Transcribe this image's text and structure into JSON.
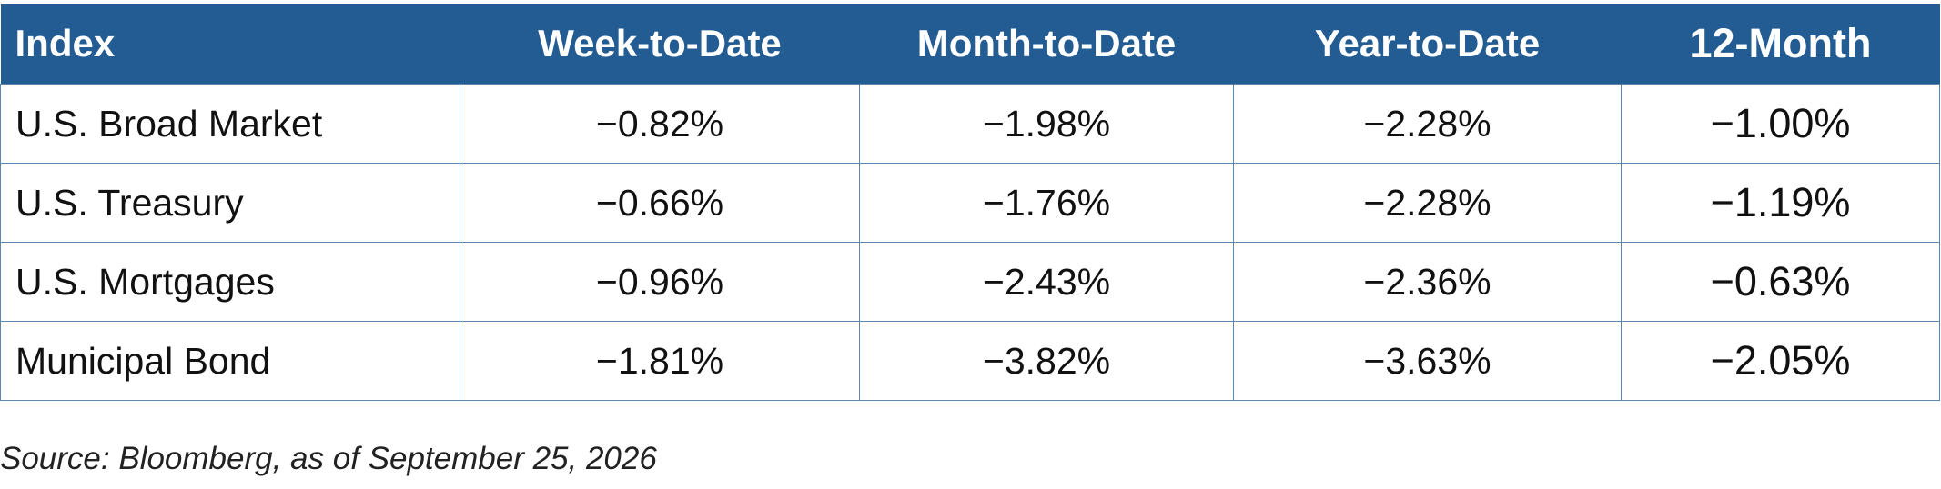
{
  "table": {
    "header": [
      "Index",
      "Week-to-Date",
      "Month-to-Date",
      "Year-to-Date",
      "12-Month"
    ],
    "rows": [
      [
        "U.S. Broad Market",
        "−0.82%",
        "−1.98%",
        "−2.28%",
        "−1.00%"
      ],
      [
        "U.S. Treasury",
        "−0.66%",
        "−1.76%",
        "−2.28%",
        "−1.19%"
      ],
      [
        "U.S. Mortgages",
        "−0.96%",
        "−2.43%",
        "−2.36%",
        "−0.63%"
      ],
      [
        "Municipal Bond",
        "−1.81%",
        "−3.82%",
        "−3.63%",
        "−2.05%"
      ]
    ]
  },
  "source": "Source: Bloomberg, as of September 25, 2026"
}
